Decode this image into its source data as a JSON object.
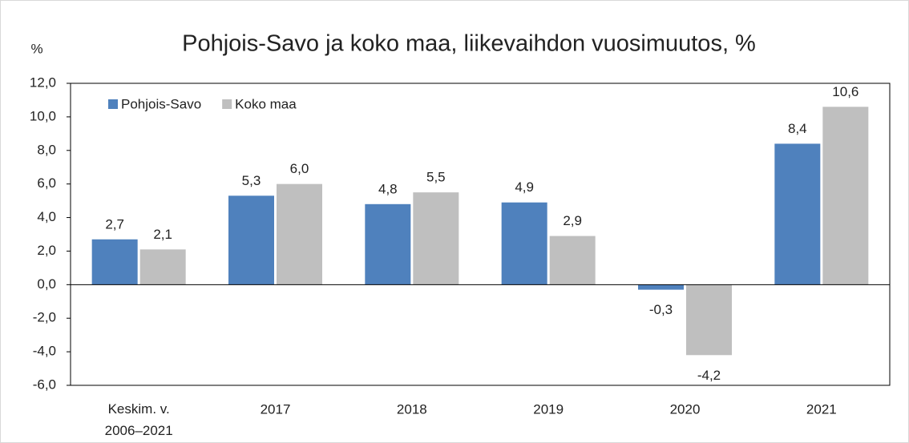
{
  "chart_data": {
    "type": "bar",
    "title": "Pohjois-Savo ja koko maa, liikevaihdon vuosimuutos, %",
    "y_label": "%",
    "categories": [
      "Keskim. v. 2006–2021",
      "2017",
      "2018",
      "2019",
      "2020",
      "2021"
    ],
    "series": [
      {
        "name": "Pohjois-Savo",
        "color": "#4f81bd",
        "values": [
          2.7,
          5.3,
          4.8,
          4.9,
          -0.3,
          8.4
        ],
        "value_labels": [
          "2,7",
          "5,3",
          "4,8",
          "4,9",
          "-0,3",
          "8,4"
        ]
      },
      {
        "name": "Koko maa",
        "color": "#bfbfbf",
        "values": [
          2.1,
          6.0,
          5.5,
          2.9,
          -4.2,
          10.6
        ],
        "value_labels": [
          "2,1",
          "6,0",
          "5,5",
          "2,9",
          "-4,2",
          "10,6"
        ]
      }
    ],
    "ylim": [
      -6,
      12
    ],
    "yticks": [
      {
        "value": -6,
        "label": "-6,0"
      },
      {
        "value": -4,
        "label": "-4,0"
      },
      {
        "value": -2,
        "label": "-2,0"
      },
      {
        "value": 0,
        "label": "0,0"
      },
      {
        "value": 2,
        "label": "2,0"
      },
      {
        "value": 4,
        "label": "4,0"
      },
      {
        "value": 6,
        "label": "6,0"
      },
      {
        "value": 8,
        "label": "8,0"
      },
      {
        "value": 10,
        "label": "10,0"
      },
      {
        "value": 12,
        "label": "12,0"
      }
    ],
    "grid": false,
    "legend": "top-left"
  }
}
